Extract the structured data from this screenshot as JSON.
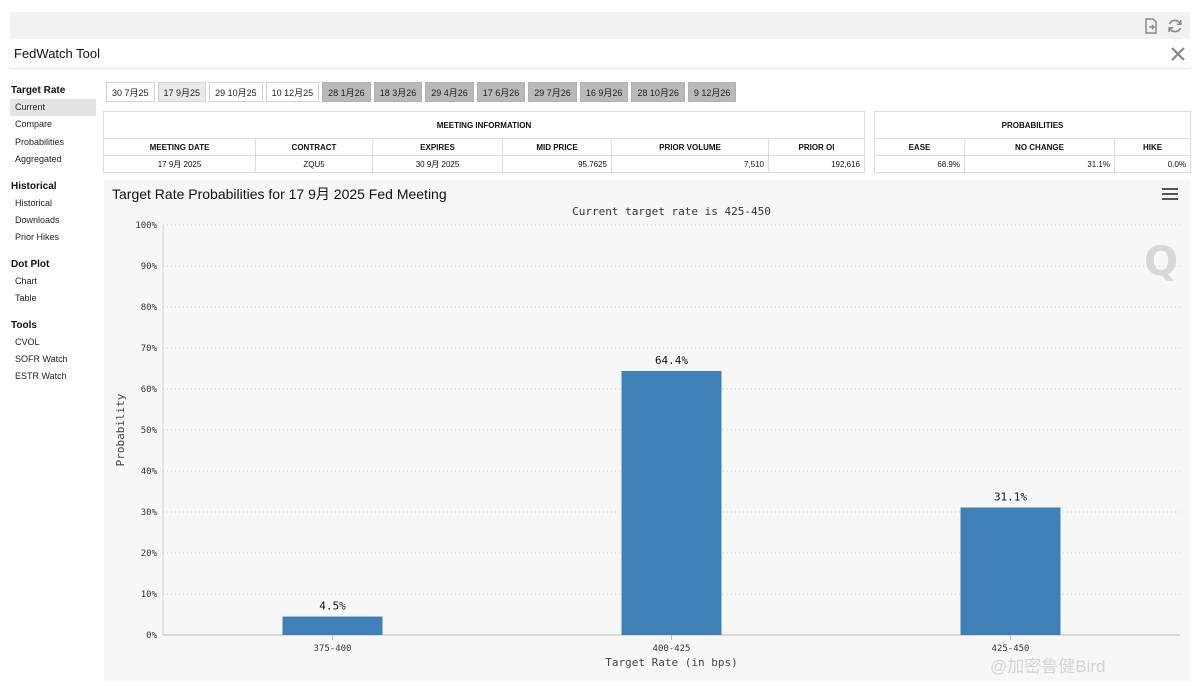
{
  "window": {
    "title": "FedWatch Tool",
    "toolbar_icons": [
      "export-icon",
      "refresh-icon"
    ]
  },
  "sidebar": {
    "sections": [
      {
        "label": "Target Rate",
        "items": [
          {
            "label": "Current",
            "active": true
          },
          {
            "label": "Compare",
            "active": false
          },
          {
            "label": "Probabilities",
            "active": false
          },
          {
            "label": "Aggregated",
            "active": false
          }
        ]
      },
      {
        "label": "Historical",
        "items": [
          {
            "label": "Historical",
            "active": false
          },
          {
            "label": "Downloads",
            "active": false
          },
          {
            "label": "Prior Hikes",
            "active": false
          }
        ]
      },
      {
        "label": "Dot Plot",
        "items": [
          {
            "label": "Chart",
            "active": false
          },
          {
            "label": "Table",
            "active": false
          }
        ]
      },
      {
        "label": "Tools",
        "items": [
          {
            "label": "CVOL",
            "active": false
          },
          {
            "label": "SOFR Watch",
            "active": false
          },
          {
            "label": "ESTR Watch",
            "active": false
          }
        ]
      }
    ]
  },
  "meeting_tabs": [
    {
      "label": "30 7月25",
      "state": "normal"
    },
    {
      "label": "17 9月25",
      "state": "selected"
    },
    {
      "label": "29 10月25",
      "state": "normal"
    },
    {
      "label": "10 12月25",
      "state": "normal"
    },
    {
      "label": "28 1月26",
      "state": "future"
    },
    {
      "label": "18 3月26",
      "state": "future"
    },
    {
      "label": "29 4月26",
      "state": "future"
    },
    {
      "label": "17 6月26",
      "state": "future"
    },
    {
      "label": "29 7月26",
      "state": "future"
    },
    {
      "label": "16 9月26",
      "state": "future"
    },
    {
      "label": "28 10月26",
      "state": "future"
    },
    {
      "label": "9 12月26",
      "state": "future"
    }
  ],
  "meeting_info": {
    "title": "MEETING INFORMATION",
    "headers": [
      "MEETING DATE",
      "CONTRACT",
      "EXPIRES",
      "MID PRICE",
      "PRIOR VOLUME",
      "PRIOR OI"
    ],
    "row": {
      "meeting_date": "17 9月 2025",
      "contract": "ZQU5",
      "expires": "30 9月 2025",
      "mid_price": "95.7625",
      "prior_volume": "7,510",
      "prior_oi": "192,616"
    }
  },
  "probabilities": {
    "title": "PROBABILITIES",
    "headers": [
      "EASE",
      "NO CHANGE",
      "HIKE"
    ],
    "row": {
      "ease": "68.9%",
      "no_change": "31.1%",
      "hike": "0.0%"
    }
  },
  "chart_data": {
    "type": "bar",
    "title": "Target Rate Probabilities for 17 9月 2025 Fed Meeting",
    "subtitle": "Current target rate is 425-450",
    "xlabel": "Target Rate (in bps)",
    "ylabel": "Probability",
    "categories": [
      "375-400",
      "400-425",
      "425-450"
    ],
    "values": [
      4.5,
      64.4,
      31.1
    ],
    "data_labels": [
      "4.5%",
      "64.4%",
      "31.1%"
    ],
    "ylim": [
      0,
      100
    ],
    "yticks": [
      "0%",
      "10%",
      "20%",
      "30%",
      "40%",
      "50%",
      "60%",
      "70%",
      "80%",
      "90%",
      "100%"
    ],
    "bar_color": "#4080b8",
    "grid": true,
    "menu_icon": "hamburger-menu-icon",
    "logo_icon": "q-logo-icon"
  },
  "watermark": "@加密鲁健Bird"
}
